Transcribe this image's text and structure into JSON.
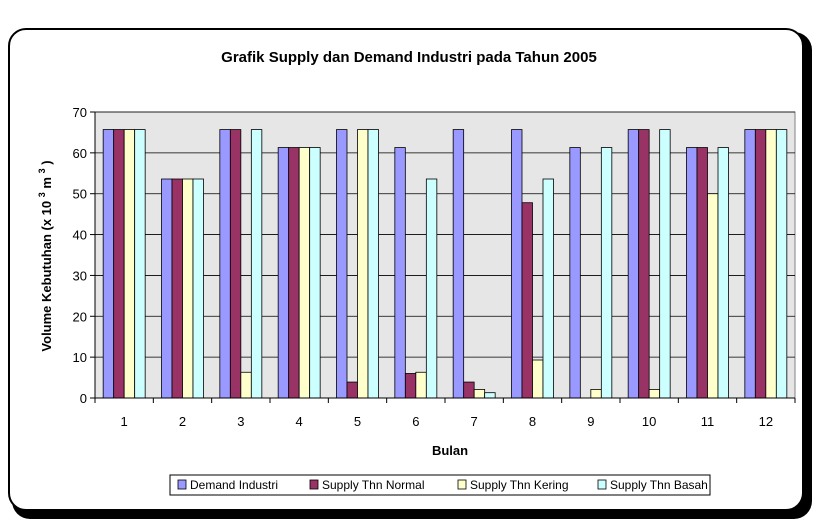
{
  "chart_data": {
    "type": "bar",
    "title": "Grafik Supply dan Demand Industri pada Tahun 2005",
    "xlabel": "Bulan",
    "ylabel_main": "Volume Kebutuhan (x 10",
    "ylabel_super": "3",
    "ylabel_unit": " m",
    "ylabel_unit_super": "3",
    "ylabel_close": ")",
    "ylim": [
      0,
      70
    ],
    "yticks": [
      "0",
      "10",
      "20",
      "30",
      "40",
      "50",
      "60",
      "70"
    ],
    "grid": true,
    "legend_position": "bottom",
    "categories": [
      "1",
      "2",
      "3",
      "4",
      "5",
      "6",
      "7",
      "8",
      "9",
      "10",
      "11",
      "12"
    ],
    "series": [
      {
        "name": "Demand Industri",
        "color": "#9999ff",
        "values": [
          65.7,
          53.6,
          65.7,
          61.3,
          65.7,
          61.3,
          65.7,
          65.7,
          61.3,
          65.7,
          61.3,
          65.7
        ]
      },
      {
        "name": "Supply Thn Normal",
        "color": "#993366",
        "values": [
          65.7,
          53.6,
          65.7,
          61.3,
          3.9,
          6.0,
          3.9,
          47.8,
          0,
          65.7,
          61.3,
          65.7
        ]
      },
      {
        "name": "Supply Thn Kering",
        "color": "#ffffcc",
        "values": [
          65.7,
          53.6,
          6.3,
          61.3,
          65.7,
          6.3,
          2.1,
          9.3,
          2.1,
          2.1,
          50.0,
          65.7
        ]
      },
      {
        "name": "Supply Thn Basah",
        "color": "#ccffff",
        "values": [
          65.7,
          53.6,
          65.7,
          61.3,
          65.7,
          53.6,
          1.3,
          53.6,
          61.3,
          65.7,
          61.3,
          65.7
        ]
      }
    ]
  }
}
